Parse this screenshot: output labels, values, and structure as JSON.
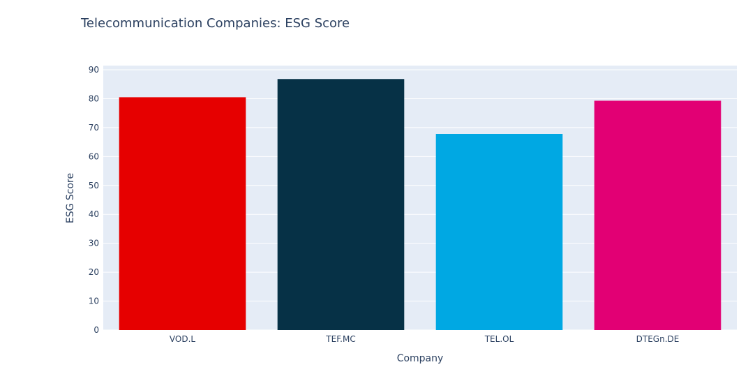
{
  "chart_data": {
    "type": "bar",
    "title": "Telecommunication Companies: ESG Score",
    "xlabel": "Company",
    "ylabel": "ESG Score",
    "categories": [
      "VOD.L",
      "TEF.MC",
      "TEL.OL",
      "DTEGn.DE"
    ],
    "values": [
      80.5,
      86.8,
      67.8,
      79.3
    ],
    "bar_colors": [
      "#e60000",
      "#063146",
      "#00a8e3",
      "#e20074"
    ],
    "ylim": [
      0,
      90
    ],
    "yticks": [
      0,
      10,
      20,
      30,
      40,
      50,
      60,
      70,
      80,
      90
    ],
    "plot_background": "#e5ecf6",
    "grid": true,
    "legend": "none"
  }
}
